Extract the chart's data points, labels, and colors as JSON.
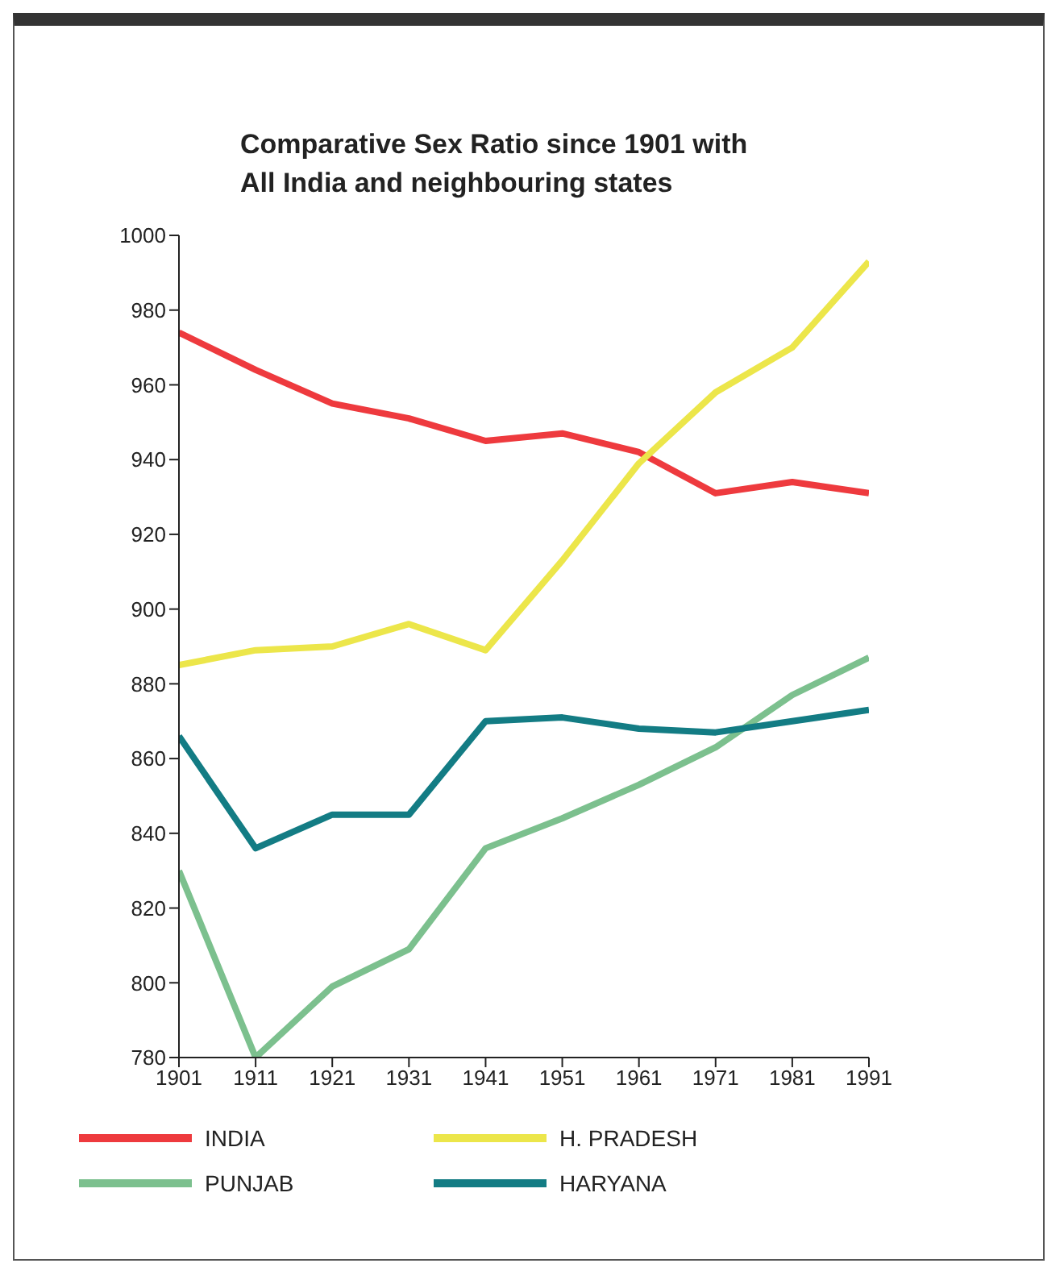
{
  "chart_data": {
    "type": "line",
    "title": "Comparative Sex Ratio since 1901 with\nAll India and neighbouring states",
    "x": [
      1901,
      1911,
      1921,
      1931,
      1941,
      1951,
      1961,
      1971,
      1981,
      1991
    ],
    "series": [
      {
        "name": "INDIA",
        "color": "#ee3a3e",
        "values": [
          974,
          964,
          955,
          951,
          945,
          947,
          942,
          931,
          934,
          931
        ]
      },
      {
        "name": "H. PRADESH",
        "color": "#ece64a",
        "values": [
          885,
          889,
          890,
          896,
          889,
          913,
          939,
          958,
          970,
          993
        ]
      },
      {
        "name": "PUNJAB",
        "color": "#7cc08e",
        "values": [
          830,
          780,
          799,
          809,
          836,
          844,
          853,
          863,
          877,
          887
        ]
      },
      {
        "name": "HARYANA",
        "color": "#137c84",
        "values": [
          866,
          836,
          845,
          845,
          870,
          871,
          868,
          867,
          870,
          873
        ]
      }
    ],
    "xlim": [
      1901,
      1991
    ],
    "xticks": [
      1901,
      1911,
      1921,
      1931,
      1941,
      1951,
      1961,
      1971,
      1981,
      1991
    ],
    "ylim": [
      780,
      1000
    ],
    "yticks": [
      780,
      800,
      820,
      840,
      860,
      880,
      900,
      920,
      940,
      960,
      980,
      1000
    ],
    "grid": false,
    "legend": "bottom",
    "marker": "none",
    "line_style": "solid"
  }
}
